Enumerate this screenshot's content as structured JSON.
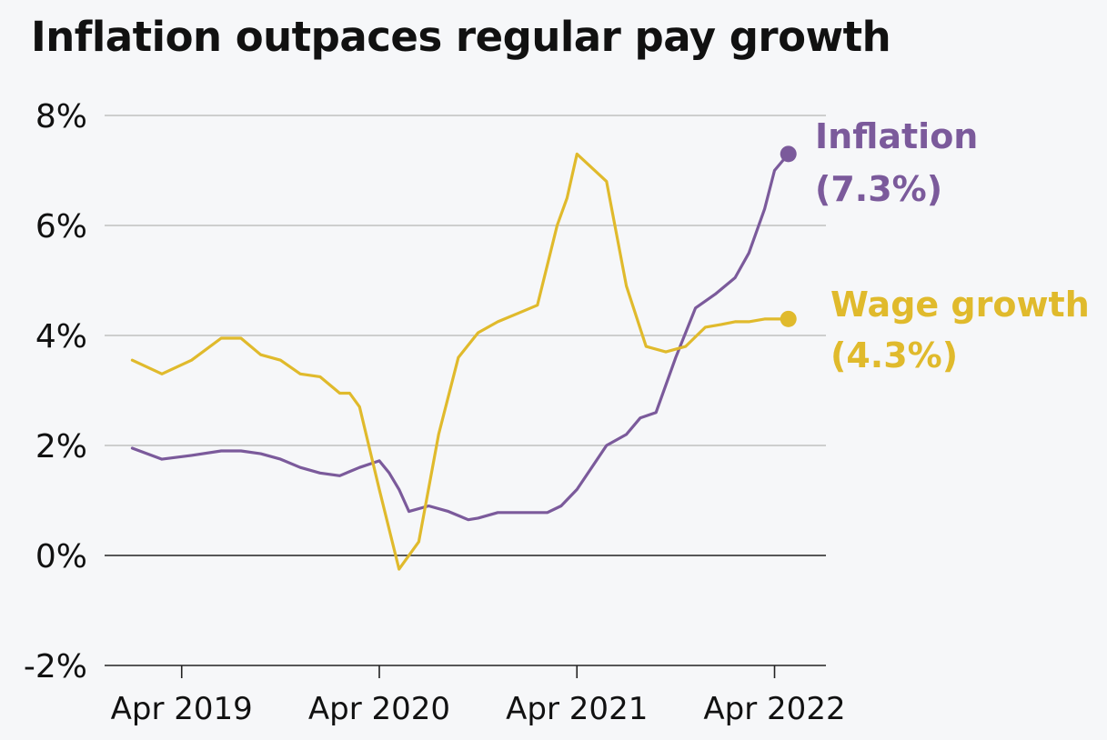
{
  "title": "Inflation outpaces regular pay growth",
  "colors": {
    "inflation": "#7b5a9b",
    "wage": "#e0ba2c",
    "grid": "#b5b5b5",
    "zero": "#222222"
  },
  "chart_data": {
    "type": "line",
    "title": "Inflation outpaces regular pay growth",
    "ylim": [
      -2,
      8
    ],
    "y_ticks": [
      {
        "v": 8,
        "label": "8%"
      },
      {
        "v": 6,
        "label": "6%"
      },
      {
        "v": 4,
        "label": "4%"
      },
      {
        "v": 2,
        "label": "2%"
      },
      {
        "v": 0,
        "label": "0%"
      },
      {
        "v": -2,
        "label": "-2%"
      }
    ],
    "x_ticks": [
      {
        "v": 2019.25,
        "label": "Apr 2019"
      },
      {
        "v": 2020.25,
        "label": "Apr 2020"
      },
      {
        "v": 2021.25,
        "label": "Apr 2021"
      },
      {
        "v": 2022.25,
        "label": "Apr 2022"
      }
    ],
    "xlim": [
      2018.86,
      2022.51
    ],
    "grid": true,
    "series": [
      {
        "key": "inflation",
        "label_line1": "Inflation",
        "label_line2": "(7.3%)",
        "x": [
          2019.0,
          2019.15,
          2019.3,
          2019.45,
          2019.55,
          2019.65,
          2019.75,
          2019.85,
          2019.95,
          2020.05,
          2020.15,
          2020.25,
          2020.3,
          2020.35,
          2020.4,
          2020.5,
          2020.6,
          2020.7,
          2020.75,
          2020.85,
          2021.0,
          2021.1,
          2021.17,
          2021.25,
          2021.4,
          2021.5,
          2021.57,
          2021.65,
          2021.75,
          2021.85,
          2021.95,
          2022.05,
          2022.12,
          2022.2,
          2022.25,
          2022.32
        ],
        "y": [
          1.95,
          1.75,
          1.82,
          1.9,
          1.9,
          1.85,
          1.75,
          1.6,
          1.5,
          1.45,
          1.6,
          1.72,
          1.5,
          1.2,
          0.8,
          0.9,
          0.8,
          0.65,
          0.68,
          0.78,
          0.78,
          0.78,
          0.9,
          1.2,
          2.0,
          2.2,
          2.5,
          2.6,
          3.6,
          4.5,
          4.75,
          5.05,
          5.5,
          6.3,
          7.0,
          7.3
        ]
      },
      {
        "key": "wage",
        "label_line1": "Wage growth",
        "label_line2": "(4.3%)",
        "x": [
          2019.0,
          2019.15,
          2019.3,
          2019.45,
          2019.55,
          2019.65,
          2019.75,
          2019.85,
          2019.95,
          2020.05,
          2020.1,
          2020.15,
          2020.25,
          2020.35,
          2020.45,
          2020.55,
          2020.65,
          2020.75,
          2020.85,
          2020.95,
          2021.05,
          2021.15,
          2021.2,
          2021.25,
          2021.4,
          2021.5,
          2021.6,
          2021.7,
          2021.8,
          2021.9,
          2021.98,
          2022.05,
          2022.12,
          2022.2,
          2022.32
        ],
        "y": [
          3.55,
          3.3,
          3.55,
          3.95,
          3.95,
          3.65,
          3.55,
          3.3,
          3.25,
          2.95,
          2.95,
          2.7,
          1.2,
          -0.25,
          0.25,
          2.2,
          3.6,
          4.05,
          4.25,
          4.4,
          4.55,
          6.0,
          6.5,
          7.3,
          6.8,
          4.9,
          3.8,
          3.7,
          3.8,
          4.15,
          4.2,
          4.25,
          4.25,
          4.3,
          4.3
        ]
      }
    ]
  }
}
